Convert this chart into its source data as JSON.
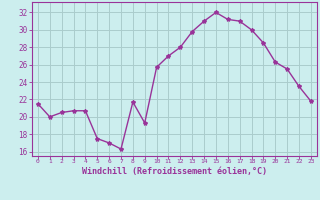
{
  "x": [
    0,
    1,
    2,
    3,
    4,
    5,
    6,
    7,
    8,
    9,
    10,
    11,
    12,
    13,
    14,
    15,
    16,
    17,
    18,
    19,
    20,
    21,
    22,
    23
  ],
  "y": [
    21.5,
    20.0,
    20.5,
    20.7,
    20.7,
    17.5,
    17.0,
    16.3,
    21.7,
    19.3,
    25.7,
    27.0,
    28.0,
    29.8,
    31.0,
    32.0,
    31.2,
    31.0,
    30.0,
    28.5,
    26.3,
    25.5,
    23.5,
    21.8
  ],
  "line_color": "#993399",
  "marker": "*",
  "marker_size": 3,
  "bg_color": "#cceeee",
  "grid_color": "#aacccc",
  "xlabel": "Windchill (Refroidissement éolien,°C)",
  "xlabel_color": "#993399",
  "ylabel_ticks": [
    16,
    18,
    20,
    22,
    24,
    26,
    28,
    30,
    32
  ],
  "xlim": [
    -0.5,
    23.5
  ],
  "ylim": [
    15.5,
    33.2
  ],
  "tick_color": "#993399",
  "axis_color": "#993399",
  "font_family": "monospace",
  "xtick_fontsize": 4.5,
  "ytick_fontsize": 5.5,
  "xlabel_fontsize": 6.0
}
